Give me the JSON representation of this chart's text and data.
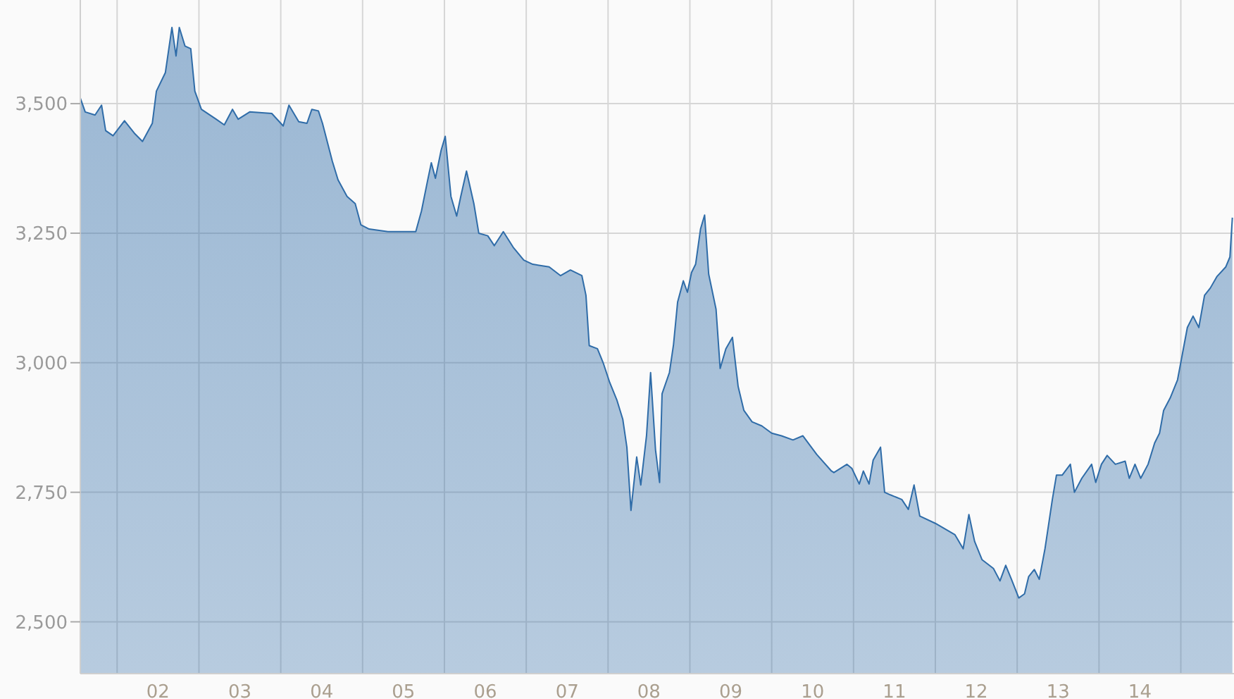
{
  "chart_data": {
    "type": "area",
    "color": "#2f6ca8",
    "x": [
      2001.05,
      2001.11,
      2001.23,
      2001.31,
      2001.36,
      2001.45,
      2001.59,
      2001.71,
      2001.81,
      2001.93,
      2001.98,
      2002.09,
      2002.17,
      2002.22,
      2002.26,
      2002.33,
      2002.4,
      2002.45,
      2002.53,
      2002.71,
      2002.81,
      2002.91,
      2002.98,
      2003.12,
      2003.39,
      2003.53,
      2003.6,
      2003.72,
      2003.82,
      2003.88,
      2003.96,
      2004.01,
      2004.13,
      2004.2,
      2004.31,
      2004.41,
      2004.48,
      2004.58,
      2004.81,
      2005.15,
      2005.22,
      2005.29,
      2005.34,
      2005.39,
      2005.46,
      2005.51,
      2005.58,
      2005.65,
      2005.7,
      2005.77,
      2005.86,
      2005.92,
      2006.03,
      2006.11,
      2006.22,
      2006.34,
      2006.47,
      2006.58,
      2006.78,
      2006.92,
      2007.04,
      2007.18,
      2007.23,
      2007.27,
      2007.37,
      2007.44,
      2007.52,
      2007.61,
      2007.68,
      2007.73,
      2007.78,
      2007.85,
      2007.9,
      2007.97,
      2008.02,
      2008.08,
      2008.13,
      2008.16,
      2008.25,
      2008.3,
      2008.35,
      2008.42,
      2008.47,
      2008.52,
      2008.57,
      2008.63,
      2008.68,
      2008.73,
      2008.82,
      2008.87,
      2008.94,
      2009.02,
      2009.09,
      2009.16,
      2009.26,
      2009.38,
      2009.5,
      2009.62,
      2009.76,
      2009.88,
      2010.05,
      2010.23,
      2010.26,
      2010.42,
      2010.48,
      2010.57,
      2010.62,
      2010.69,
      2010.74,
      2010.83,
      2010.88,
      2010.95,
      2011.09,
      2011.17,
      2011.24,
      2011.31,
      2011.5,
      2011.74,
      2011.84,
      2011.91,
      2011.98,
      2012.07,
      2012.21,
      2012.29,
      2012.36,
      2012.43,
      2012.52,
      2012.59,
      2012.64,
      2012.71,
      2012.77,
      2012.84,
      2012.93,
      2012.98,
      2013.05,
      2013.15,
      2013.2,
      2013.29,
      2013.41,
      2013.46,
      2013.53,
      2013.6,
      2013.7,
      2013.82,
      2013.87,
      2013.94,
      2014.01,
      2014.1,
      2014.18,
      2014.24,
      2014.29,
      2014.37,
      2014.46,
      2014.58,
      2014.65,
      2014.72,
      2014.79,
      2014.86,
      2014.94,
      2015.05,
      2015.1,
      2015.13
    ],
    "values": [
      3511,
      3484,
      3478,
      3497,
      3448,
      3438,
      3467,
      3443,
      3427,
      3462,
      3524,
      3560,
      3647,
      3592,
      3647,
      3611,
      3606,
      3524,
      3489,
      3470,
      3459,
      3489,
      3470,
      3484,
      3481,
      3457,
      3497,
      3465,
      3462,
      3489,
      3486,
      3462,
      3389,
      3353,
      3321,
      3307,
      3266,
      3258,
      3253,
      3253,
      3293,
      3348,
      3386,
      3356,
      3410,
      3437,
      3321,
      3283,
      3321,
      3370,
      3307,
      3250,
      3245,
      3226,
      3253,
      3223,
      3198,
      3190,
      3185,
      3168,
      3179,
      3168,
      3130,
      3033,
      3027,
      3000,
      2962,
      2927,
      2891,
      2837,
      2715,
      2818,
      2764,
      2859,
      2981,
      2832,
      2769,
      2940,
      2981,
      3035,
      3117,
      3158,
      3136,
      3174,
      3190,
      3258,
      3285,
      3171,
      3103,
      2989,
      3027,
      3049,
      2954,
      2908,
      2886,
      2878,
      2864,
      2859,
      2851,
      2859,
      2823,
      2791,
      2788,
      2804,
      2796,
      2766,
      2791,
      2766,
      2812,
      2837,
      2750,
      2745,
      2736,
      2717,
      2764,
      2704,
      2690,
      2668,
      2641,
      2707,
      2655,
      2620,
      2603,
      2579,
      2609,
      2582,
      2546,
      2554,
      2587,
      2601,
      2582,
      2641,
      2736,
      2783,
      2783,
      2804,
      2750,
      2777,
      2804,
      2769,
      2804,
      2821,
      2804,
      2810,
      2777,
      2804,
      2777,
      2804,
      2845,
      2864,
      2908,
      2932,
      2967,
      3068,
      3090,
      3068,
      3130,
      3144,
      3166,
      3185,
      3204,
      3280
    ],
    "xlim": [
      2001.05,
      2015.15
    ],
    "xticks": [
      {
        "value": 2001.5,
        "label": null
      },
      {
        "value": 2002,
        "label": "02"
      },
      {
        "value": 2002.5,
        "label": null
      },
      {
        "value": 2003,
        "label": "03"
      },
      {
        "value": 2003.5,
        "label": null
      },
      {
        "value": 2004,
        "label": "04"
      },
      {
        "value": 2004.5,
        "label": null
      },
      {
        "value": 2005,
        "label": "05"
      },
      {
        "value": 2005.5,
        "label": null
      },
      {
        "value": 2006,
        "label": "06"
      },
      {
        "value": 2006.5,
        "label": null
      },
      {
        "value": 2007,
        "label": "07"
      },
      {
        "value": 2007.5,
        "label": null
      },
      {
        "value": 2008,
        "label": "08"
      },
      {
        "value": 2008.5,
        "label": null
      },
      {
        "value": 2009,
        "label": "09"
      },
      {
        "value": 2009.5,
        "label": null
      },
      {
        "value": 2010,
        "label": "10"
      },
      {
        "value": 2010.5,
        "label": null
      },
      {
        "value": 2011,
        "label": "11"
      },
      {
        "value": 2011.5,
        "label": null
      },
      {
        "value": 2012,
        "label": "12"
      },
      {
        "value": 2012.5,
        "label": null
      },
      {
        "value": 2013,
        "label": "13"
      },
      {
        "value": 2013.5,
        "label": null
      },
      {
        "value": 2014,
        "label": "14"
      },
      {
        "value": 2014.5,
        "label": null
      }
    ],
    "ylim": [
      2400,
      3700
    ],
    "yticks": [
      {
        "value": 2500,
        "label": "2,500"
      },
      {
        "value": 2750,
        "label": "2,750"
      },
      {
        "value": 3000,
        "label": "3,000"
      },
      {
        "value": 3250,
        "label": "3,250"
      },
      {
        "value": 3500,
        "label": "3,500"
      }
    ],
    "grid": true,
    "marker": "none",
    "line_style": "solid"
  }
}
